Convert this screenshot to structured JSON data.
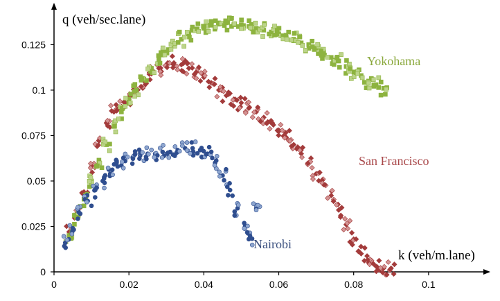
{
  "chart_data": {
    "type": "scatter",
    "title": "",
    "xlabel": "k (veh/m.lane)",
    "ylabel": "q (veh/sec.lane)",
    "x_axis": {
      "min": 0,
      "max": 0.115,
      "ticks": [
        0,
        0.02,
        0.04,
        0.06,
        0.08,
        0.1
      ],
      "tick_labels": [
        "0",
        "0.02",
        "0.04",
        "0.06",
        "0.08",
        "0.1"
      ]
    },
    "y_axis": {
      "min": 0,
      "max": 0.145,
      "ticks": [
        0,
        0.025,
        0.05,
        0.075,
        0.1,
        0.125
      ],
      "tick_labels": [
        "0",
        "0.025",
        "0.05",
        "0.075",
        "0.1",
        "0.125"
      ]
    },
    "grid": false,
    "legend": "none (series labeled directly on plot)",
    "series": [
      {
        "name": "Yokohama",
        "color": "#8db33f",
        "light_color": "#bcd48a",
        "marker": "square",
        "label_color": "#8aa83c",
        "points": [
          [
            0.004,
            0.02
          ],
          [
            0.006,
            0.03
          ],
          [
            0.008,
            0.04
          ],
          [
            0.01,
            0.05
          ],
          [
            0.012,
            0.06
          ],
          [
            0.014,
            0.07
          ],
          [
            0.016,
            0.08
          ],
          [
            0.018,
            0.088
          ],
          [
            0.02,
            0.095
          ],
          [
            0.022,
            0.1
          ],
          [
            0.024,
            0.106
          ],
          [
            0.026,
            0.112
          ],
          [
            0.028,
            0.117
          ],
          [
            0.03,
            0.121
          ],
          [
            0.032,
            0.125
          ],
          [
            0.034,
            0.128
          ],
          [
            0.036,
            0.131
          ],
          [
            0.038,
            0.133
          ],
          [
            0.04,
            0.134
          ],
          [
            0.042,
            0.136
          ],
          [
            0.044,
            0.137
          ],
          [
            0.046,
            0.137
          ],
          [
            0.048,
            0.136
          ],
          [
            0.05,
            0.136
          ],
          [
            0.052,
            0.135
          ],
          [
            0.054,
            0.134
          ],
          [
            0.056,
            0.133
          ],
          [
            0.058,
            0.132
          ],
          [
            0.06,
            0.131
          ],
          [
            0.062,
            0.129
          ],
          [
            0.064,
            0.128
          ],
          [
            0.066,
            0.126
          ],
          [
            0.068,
            0.125
          ],
          [
            0.07,
            0.123
          ],
          [
            0.072,
            0.121
          ],
          [
            0.074,
            0.118
          ],
          [
            0.076,
            0.116
          ],
          [
            0.078,
            0.113
          ],
          [
            0.08,
            0.11
          ],
          [
            0.082,
            0.108
          ],
          [
            0.084,
            0.105
          ],
          [
            0.086,
            0.103
          ],
          [
            0.088,
            0.101
          ]
        ]
      },
      {
        "name": "San Francisco",
        "color": "#a33b3b",
        "light_color": "#d39393",
        "marker": "diamond",
        "label_color": "#a9484a",
        "points": [
          [
            0.004,
            0.022
          ],
          [
            0.006,
            0.032
          ],
          [
            0.008,
            0.044
          ],
          [
            0.01,
            0.058
          ],
          [
            0.012,
            0.072
          ],
          [
            0.014,
            0.082
          ],
          [
            0.016,
            0.088
          ],
          [
            0.018,
            0.091
          ],
          [
            0.02,
            0.095
          ],
          [
            0.022,
            0.1
          ],
          [
            0.024,
            0.105
          ],
          [
            0.026,
            0.109
          ],
          [
            0.028,
            0.112
          ],
          [
            0.03,
            0.114
          ],
          [
            0.032,
            0.115
          ],
          [
            0.034,
            0.114
          ],
          [
            0.036,
            0.112
          ],
          [
            0.038,
            0.11
          ],
          [
            0.04,
            0.107
          ],
          [
            0.042,
            0.104
          ],
          [
            0.044,
            0.1
          ],
          [
            0.046,
            0.097
          ],
          [
            0.048,
            0.095
          ],
          [
            0.05,
            0.093
          ],
          [
            0.052,
            0.09
          ],
          [
            0.054,
            0.088
          ],
          [
            0.056,
            0.085
          ],
          [
            0.058,
            0.082
          ],
          [
            0.06,
            0.078
          ],
          [
            0.062,
            0.074
          ],
          [
            0.064,
            0.07
          ],
          [
            0.066,
            0.065
          ],
          [
            0.068,
            0.06
          ],
          [
            0.07,
            0.054
          ],
          [
            0.072,
            0.048
          ],
          [
            0.074,
            0.042
          ],
          [
            0.076,
            0.034
          ],
          [
            0.078,
            0.026
          ],
          [
            0.08,
            0.018
          ],
          [
            0.082,
            0.01
          ],
          [
            0.084,
            0.005
          ],
          [
            0.086,
            0.003
          ],
          [
            0.088,
            0.002
          ],
          [
            0.09,
            0.002
          ]
        ]
      },
      {
        "name": "Nairobi",
        "color": "#2f4e8f",
        "light_color": "#8ea6cf",
        "marker": "circle",
        "label_color": "#3a4f7e",
        "points": [
          [
            0.003,
            0.016
          ],
          [
            0.005,
            0.024
          ],
          [
            0.007,
            0.032
          ],
          [
            0.009,
            0.039
          ],
          [
            0.011,
            0.045
          ],
          [
            0.013,
            0.05
          ],
          [
            0.015,
            0.054
          ],
          [
            0.017,
            0.058
          ],
          [
            0.019,
            0.061
          ],
          [
            0.021,
            0.063
          ],
          [
            0.023,
            0.064
          ],
          [
            0.025,
            0.065
          ],
          [
            0.027,
            0.065
          ],
          [
            0.029,
            0.066
          ],
          [
            0.031,
            0.066
          ],
          [
            0.033,
            0.067
          ],
          [
            0.035,
            0.068
          ],
          [
            0.037,
            0.068
          ],
          [
            0.039,
            0.067
          ],
          [
            0.041,
            0.065
          ],
          [
            0.043,
            0.06
          ],
          [
            0.045,
            0.053
          ],
          [
            0.047,
            0.045
          ],
          [
            0.049,
            0.035
          ],
          [
            0.051,
            0.025
          ],
          [
            0.052,
            0.018
          ],
          [
            0.054,
            0.035
          ]
        ]
      }
    ]
  }
}
